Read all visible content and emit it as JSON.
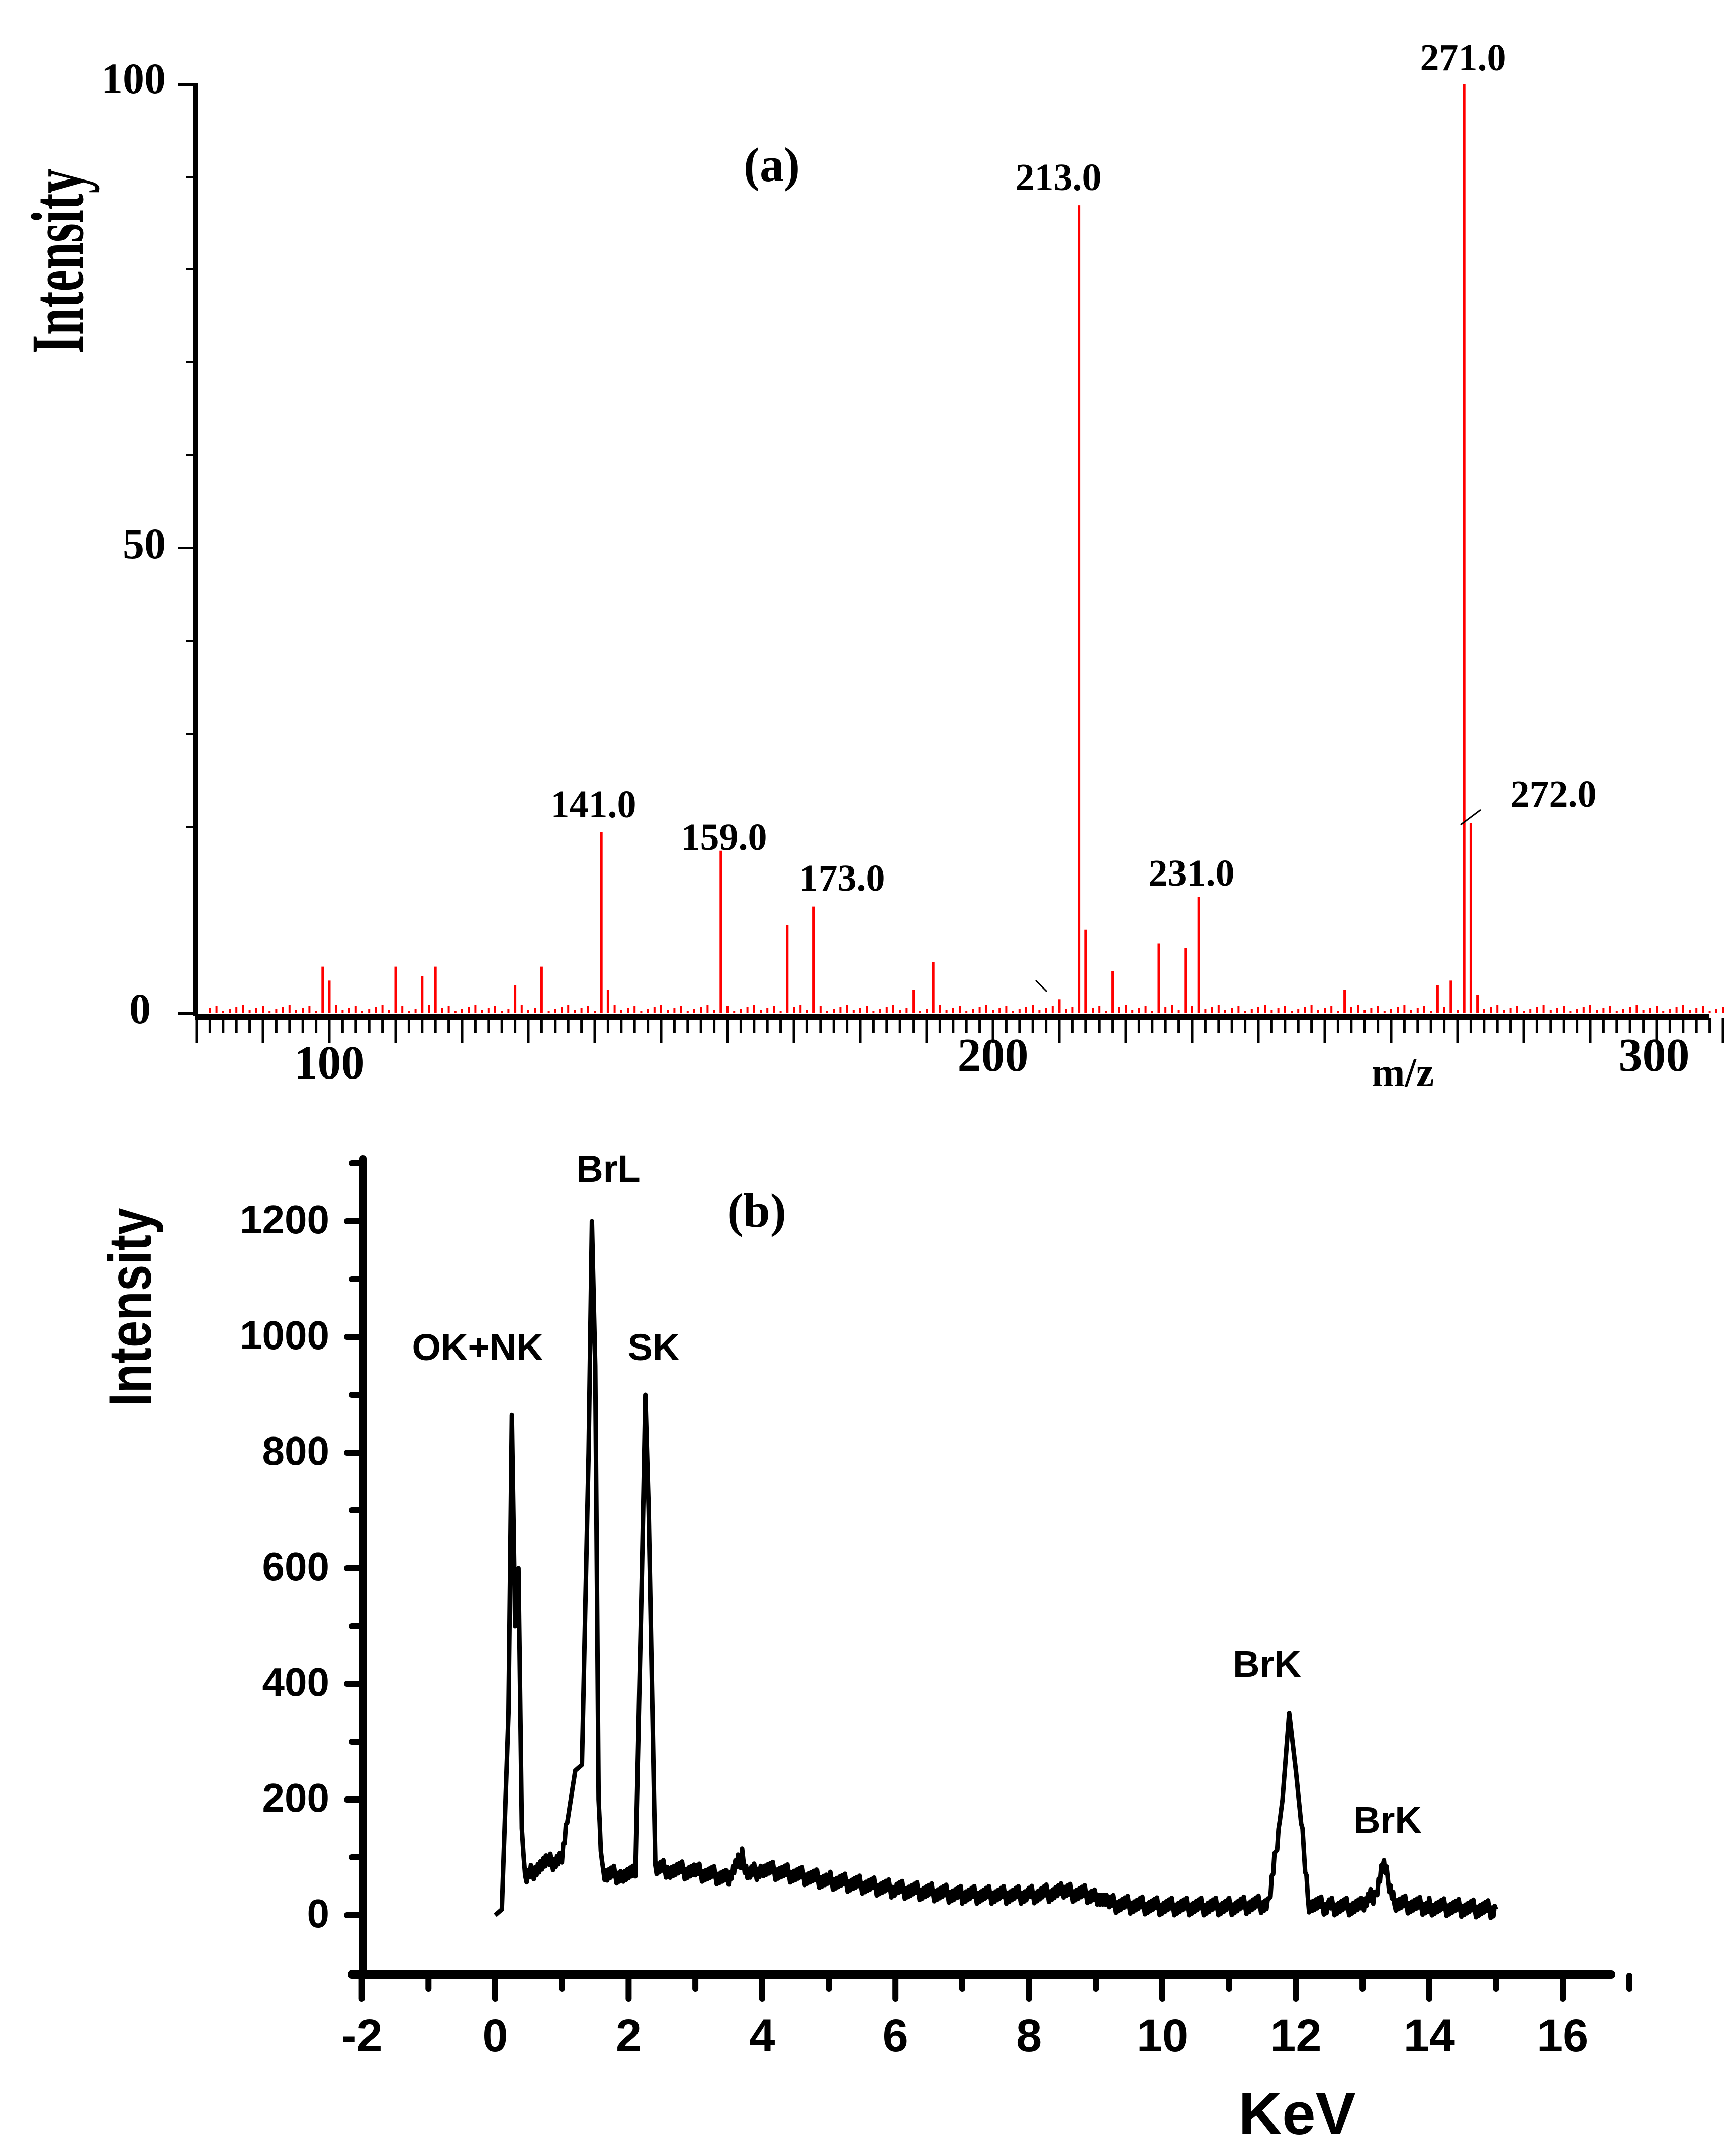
{
  "chart_data": [
    {
      "panel": "(a)",
      "type": "bar",
      "subtype": "mass-spectrum",
      "title": "(a)",
      "xlabel": "m/z",
      "ylabel": "Intensity",
      "xlim": [
        80,
        312
      ],
      "ylim": [
        0,
        100
      ],
      "xticks": [
        100,
        200,
        300
      ],
      "yticks": [
        0,
        50,
        100
      ],
      "color": "#ff0000",
      "grid": false,
      "labeled_peaks": [
        {
          "mz": 141.0,
          "label": "141.0",
          "intensity": 19.5
        },
        {
          "mz": 159.0,
          "label": "159.0",
          "intensity": 17.5
        },
        {
          "mz": 173.0,
          "label": "173.0",
          "intensity": 11.5
        },
        {
          "mz": 213.0,
          "label": "213.0",
          "intensity": 87
        },
        {
          "mz": 231.0,
          "label": "231.0",
          "intensity": 12.5
        },
        {
          "mz": 271.0,
          "label": "271.0",
          "intensity": 100
        },
        {
          "mz": 272.0,
          "label": "272.0",
          "intensity": 20.5
        }
      ],
      "minor_peaks": [
        {
          "mz": 99,
          "intensity": 5
        },
        {
          "mz": 100,
          "intensity": 3.5
        },
        {
          "mz": 110,
          "intensity": 5
        },
        {
          "mz": 114,
          "intensity": 4
        },
        {
          "mz": 116,
          "intensity": 5
        },
        {
          "mz": 128,
          "intensity": 3
        },
        {
          "mz": 132,
          "intensity": 5
        },
        {
          "mz": 142,
          "intensity": 2.5
        },
        {
          "mz": 169,
          "intensity": 9.5
        },
        {
          "mz": 188,
          "intensity": 2.5
        },
        {
          "mz": 191,
          "intensity": 5.5
        },
        {
          "mz": 210,
          "intensity": 1.5
        },
        {
          "mz": 214,
          "intensity": 9
        },
        {
          "mz": 218,
          "intensity": 4.5
        },
        {
          "mz": 225,
          "intensity": 7.5
        },
        {
          "mz": 229,
          "intensity": 7
        },
        {
          "mz": 253,
          "intensity": 2.5
        },
        {
          "mz": 267,
          "intensity": 3
        },
        {
          "mz": 269,
          "intensity": 3.5
        },
        {
          "mz": 273,
          "intensity": 2
        }
      ]
    },
    {
      "panel": "(b)",
      "type": "line",
      "subtype": "EDX-spectrum",
      "title": "(b)",
      "xlabel": "KeV",
      "ylabel": "Intensity",
      "xlim": [
        -2,
        17
      ],
      "ylim": [
        -100,
        1300
      ],
      "xticks": [
        -2,
        0,
        2,
        4,
        6,
        8,
        10,
        12,
        14,
        16
      ],
      "yticks": [
        0,
        200,
        400,
        600,
        800,
        1000,
        1200
      ],
      "color": "#000000",
      "grid": false,
      "annotations": [
        {
          "text": "OK+NK",
          "x": 0.3,
          "y": 865
        },
        {
          "text": "BrL",
          "x": 1.5,
          "y": 1200
        },
        {
          "text": "SK",
          "x": 2.3,
          "y": 900
        },
        {
          "text": "BrK",
          "x": 11.9,
          "y": 350
        },
        {
          "text": "BrK",
          "x": 13.3,
          "y": 90
        }
      ],
      "x": [
        0.0,
        0.1,
        0.2,
        0.25,
        0.3,
        0.35,
        0.4,
        0.45,
        0.6,
        0.8,
        1.0,
        1.2,
        1.3,
        1.4,
        1.45,
        1.5,
        1.55,
        1.6,
        1.7,
        1.9,
        2.1,
        2.2,
        2.25,
        2.3,
        2.4,
        2.6,
        3.0,
        3.5,
        3.7,
        3.8,
        4.0,
        5.0,
        6.0,
        7.0,
        8.0,
        8.5,
        9.0,
        9.2,
        10.0,
        11.0,
        11.6,
        11.8,
        11.9,
        12.0,
        12.2,
        12.5,
        13.0,
        13.2,
        13.3,
        13.5,
        14.0,
        15.0
      ],
      "y": [
        0,
        10,
        350,
        865,
        500,
        600,
        150,
        60,
        80,
        90,
        100,
        250,
        260,
        800,
        1200,
        950,
        200,
        80,
        70,
        70,
        70,
        600,
        900,
        700,
        80,
        80,
        75,
        65,
        100,
        70,
        80,
        60,
        45,
        35,
        35,
        40,
        35,
        20,
        15,
        15,
        20,
        200,
        350,
        250,
        20,
        15,
        15,
        40,
        90,
        20,
        15,
        10
      ]
    }
  ],
  "panel_a": {
    "label": "(a)",
    "ylabel": "Intensity",
    "xlabel": "m/z",
    "yticks": [
      "100",
      "50",
      "0"
    ],
    "xticks": [
      "100",
      "200",
      "300"
    ],
    "peak_labels": [
      "141.0",
      "159.0",
      "173.0",
      "213.0",
      "231.0",
      "271.0",
      "272.0"
    ]
  },
  "panel_b": {
    "label": "(b)",
    "ylabel": "Intensity",
    "xlabel": "KeV",
    "yticks": [
      "1200",
      "1000",
      "800",
      "600",
      "400",
      "200",
      "0"
    ],
    "xticks": [
      "-2",
      "0",
      "2",
      "4",
      "6",
      "8",
      "10",
      "12",
      "14",
      "16"
    ],
    "annotations": [
      "OK+NK",
      "BrL",
      "SK",
      "BrK",
      "BrK"
    ]
  }
}
